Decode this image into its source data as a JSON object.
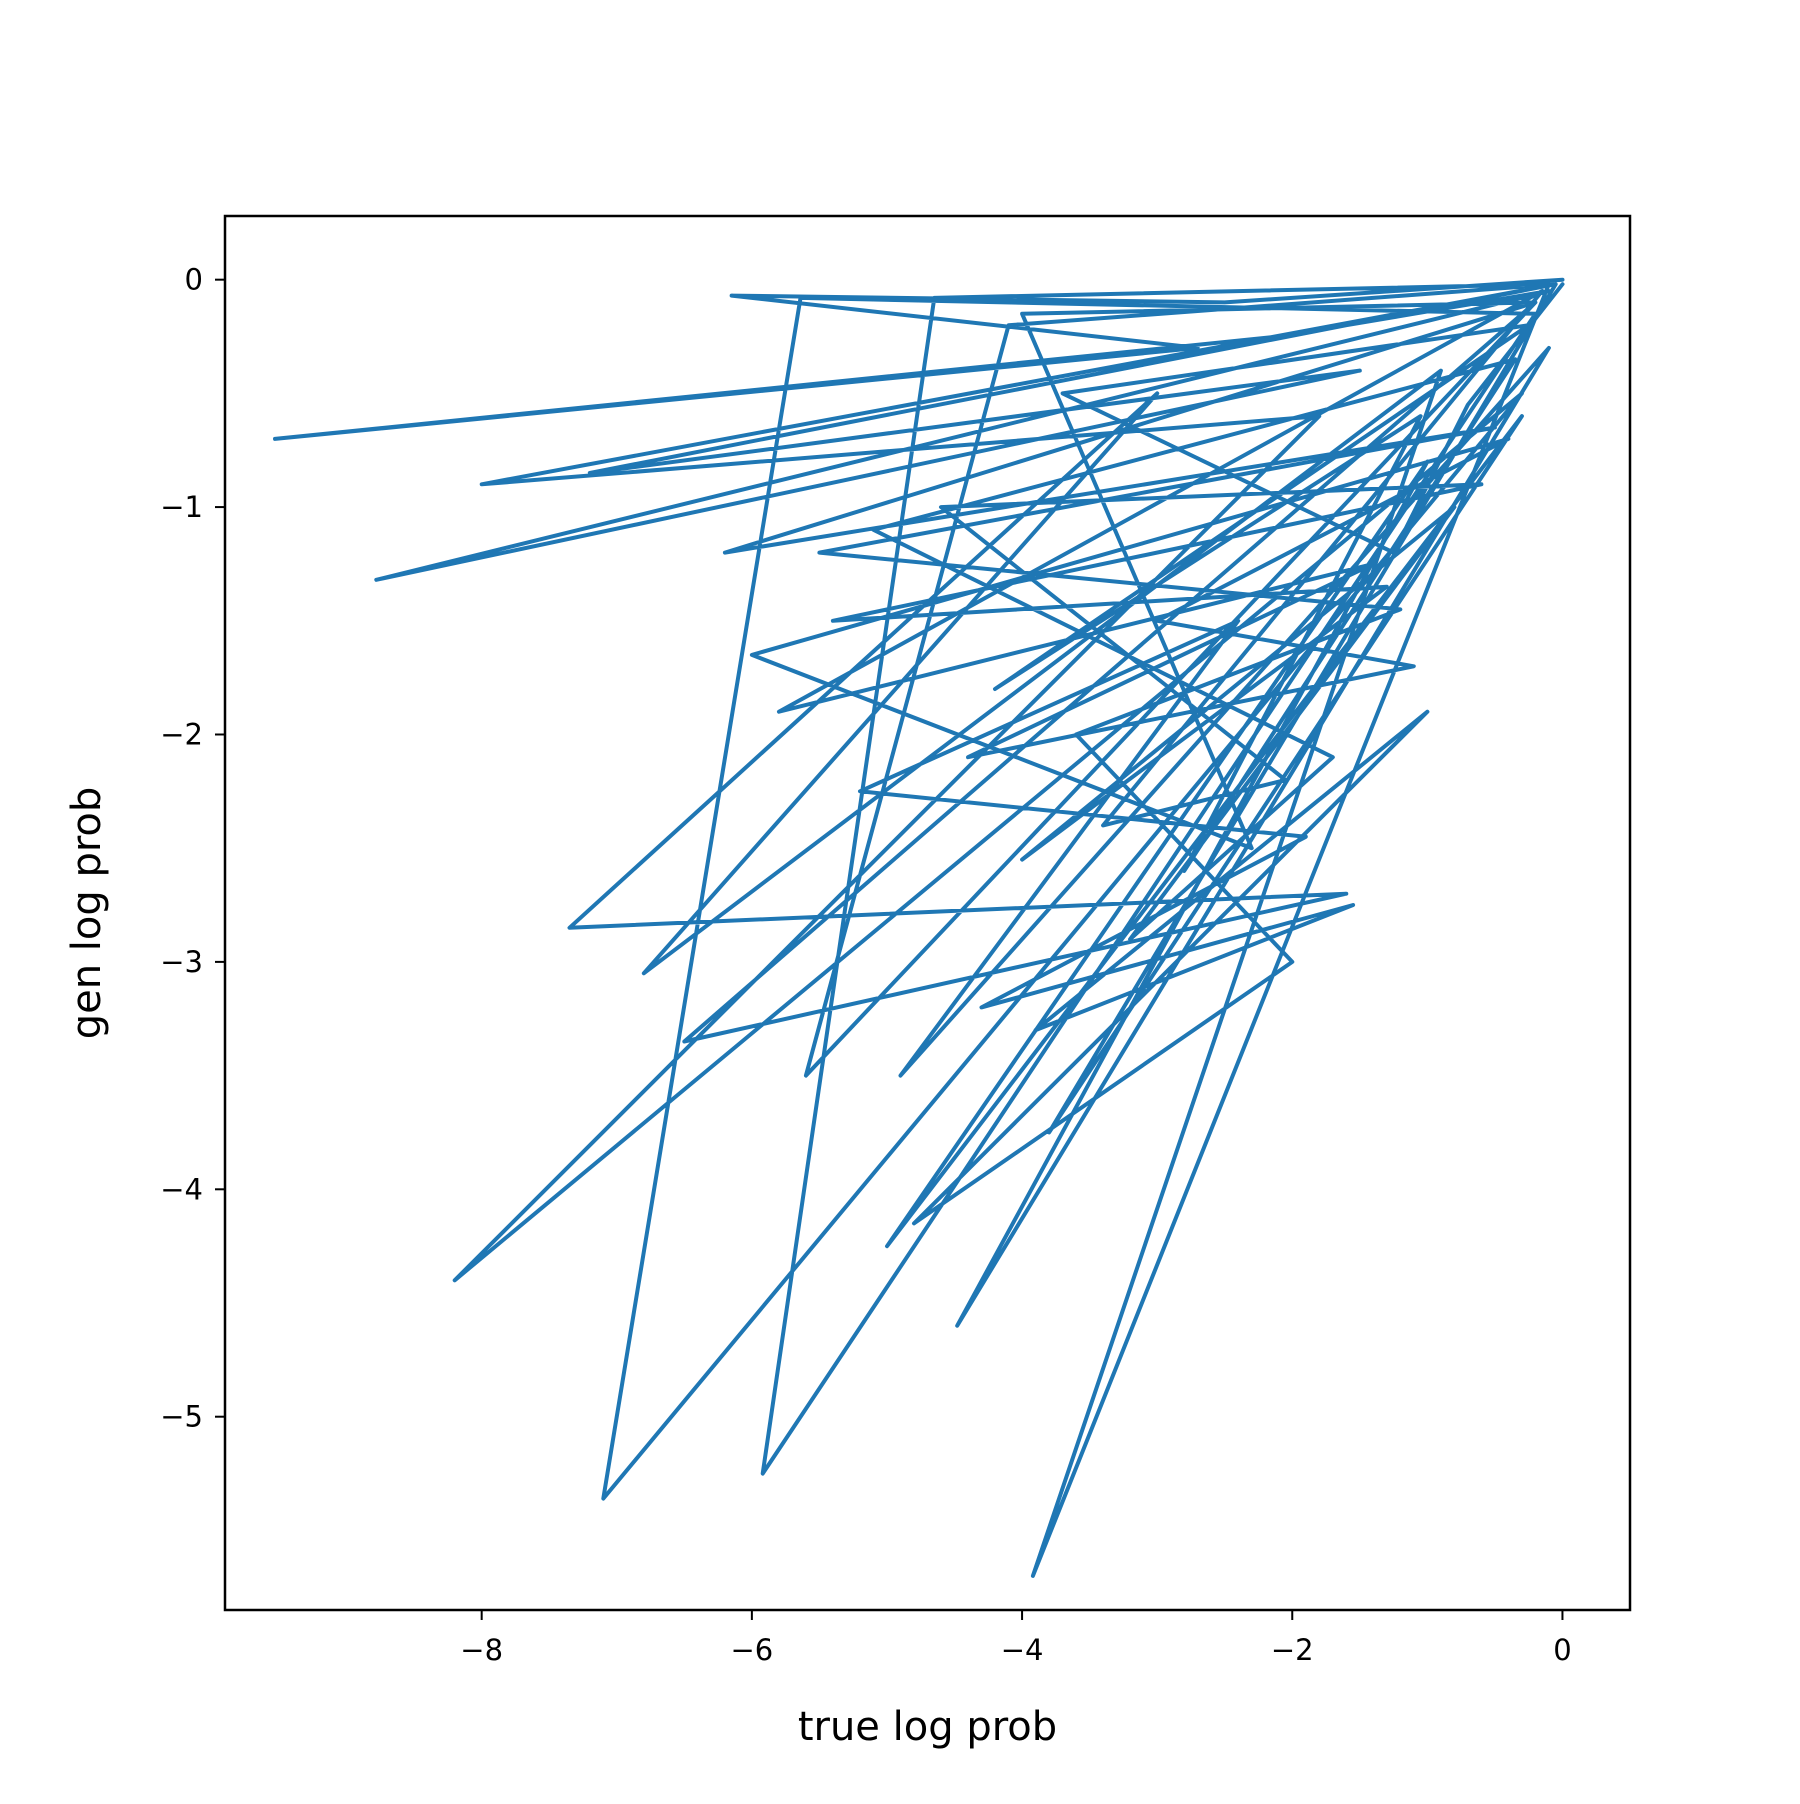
{
  "chart_data": {
    "type": "line",
    "title": "",
    "xlabel": "true log prob",
    "ylabel": "gen log prob",
    "xlim": [
      -9.9,
      0.5
    ],
    "ylim": [
      -5.85,
      0.28
    ],
    "xticks": [
      -8,
      -6,
      -4,
      -2,
      0
    ],
    "yticks": [
      0,
      -1,
      -2,
      -3,
      -4,
      -5
    ],
    "xtick_labels": [
      "−8",
      "−6",
      "−4",
      "−2",
      "0"
    ],
    "ytick_labels": [
      "0",
      "−1",
      "−2",
      "−3",
      "−4",
      "−5"
    ],
    "grid": false,
    "legend": "none",
    "color": "#1f77b4",
    "series": [
      {
        "x": [
          0,
          -2.5,
          -6.15,
          -2.7,
          -9.53,
          -2.1,
          -0.1,
          -8.78,
          -1.5,
          -7.2,
          -0.05,
          -8.0,
          -1.8,
          -8.2,
          -0.3,
          -7.1,
          -5.64,
          -0.2,
          -5.92,
          -4.65,
          -0.1,
          -3.92,
          -0.9,
          -6.8,
          -3.0,
          -7.35,
          -1.6,
          -6.5,
          -0.2,
          -5.6,
          -4.1,
          -0.05,
          -3.8,
          -0.3,
          -5.0,
          -1.0,
          -4.48,
          -0.1,
          -4.9,
          -2.4,
          -5.2,
          -1.9,
          -4.3,
          -1.55,
          -3.9,
          -1.0,
          -4.8,
          -2.0,
          -3.6,
          -1.2,
          -5.5,
          -0.5,
          -6.2,
          -0.2,
          -4.0,
          -2.3,
          -6.0,
          -0.4,
          -3.0,
          -1.1,
          -4.4,
          -1.4,
          -5.8,
          -0.15,
          -3.4,
          -2.05,
          -4.6,
          -0.6,
          -5.4,
          -1.3,
          -4.0,
          -0.8,
          -3.2,
          -1.7,
          -5.1,
          -0.35,
          -2.8,
          -1.05,
          -4.2,
          -0.25,
          -3.7,
          -1.25,
          -0.7,
          0
        ],
        "y": [
          0,
          -0.1,
          -0.07,
          -0.3,
          -0.7,
          -0.25,
          -0.05,
          -1.32,
          -0.4,
          -0.85,
          -0.02,
          -0.9,
          -0.6,
          -4.4,
          -0.5,
          -5.36,
          -0.08,
          -0.15,
          -5.25,
          -0.08,
          -0.02,
          -5.7,
          -0.4,
          -3.05,
          -0.5,
          -2.85,
          -2.7,
          -3.35,
          -0.1,
          -3.5,
          -0.2,
          -0.02,
          -3.75,
          -0.6,
          -4.25,
          -0.8,
          -4.6,
          -0.3,
          -3.5,
          -1.5,
          -2.25,
          -2.45,
          -3.2,
          -2.75,
          -3.3,
          -1.9,
          -4.15,
          -3.0,
          -2.0,
          -1.45,
          -1.2,
          -0.65,
          -1.2,
          -0.1,
          -0.15,
          -2.5,
          -1.65,
          -0.7,
          -1.5,
          -1.7,
          -2.1,
          -1.25,
          -1.9,
          -0.05,
          -2.4,
          -2.2,
          -1.0,
          -0.9,
          -1.5,
          -1.35,
          -2.55,
          -1.0,
          -2.9,
          -2.1,
          -1.1,
          -0.35,
          -2.6,
          -0.6,
          -1.8,
          -0.2,
          -0.5,
          -1.2,
          -0.55,
          -0.02
        ]
      }
    ]
  }
}
